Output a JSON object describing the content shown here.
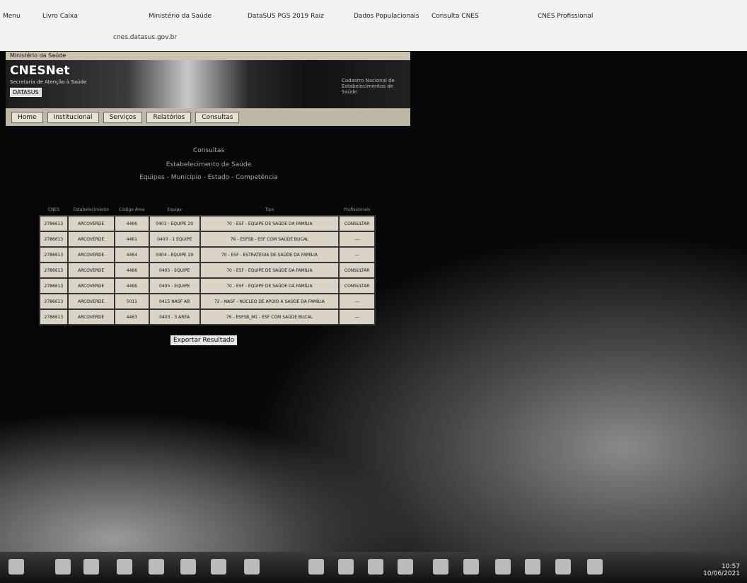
{
  "browser": {
    "tabs": [
      "Menu",
      "Livro Caixa",
      "Ministério da Saúde",
      "DataSUS PGS 2019 Raiz",
      "Dados Populacionais",
      "Consulta CNES",
      "CNES Profissional"
    ],
    "address": "cnes.datasus.gov.br"
  },
  "header": {
    "ministry": "Ministério da Saúde",
    "title": "CNESNet",
    "subtitle": "Secretaria de Atenção à Saúde",
    "logo": "DATASUS",
    "right_text": "Cadastro Nacional de Estabelecimentos de Saúde"
  },
  "nav": [
    "Home",
    "Institucional",
    "Serviços",
    "Relatórios",
    "Consultas"
  ],
  "content": {
    "heading": "Consultas",
    "line1": "Estabelecimento de Saúde",
    "line2": "Equipes - Município - Estado - Competência"
  },
  "table": {
    "headers": [
      "CNES",
      "Estabelecimento",
      "Código Área",
      "Equipe",
      "Tipo",
      "Profissionais"
    ],
    "rows": [
      [
        "2786613",
        "ARCOVERDE",
        "4466",
        "0403 - EQUIPE 20",
        "70 - ESF - EQUIPE DE SAÚDE DA FAMÍLIA",
        "CONSULTAR"
      ],
      [
        "2786613",
        "ARCOVERDE",
        "4461",
        "0403 - 1 EQUIPE",
        "76 - ESFSB - ESF COM SAÚDE BUCAL",
        "---"
      ],
      [
        "2786613",
        "ARCOVERDE",
        "4464",
        "0404 - EQUIPE 19",
        "70 - ESF - ESTRATÉGIA DE SAÚDE DA FAMÍLIA",
        "---"
      ],
      [
        "2786613",
        "ARCOVERDE",
        "4466",
        "0405 - EQUIPE",
        "70 - ESF - EQUIPE DE SAÚDE DA FAMÍLIA",
        "CONSULTAR"
      ],
      [
        "2786613",
        "ARCOVERDE",
        "4466",
        "0405 - EQUIPE",
        "70 - ESF - EQUIPE DE SAÚDE DA FAMÍLIA",
        "CONSULTAR"
      ],
      [
        "2786613",
        "ARCOVERDE",
        "5011",
        "0415 NASF AB",
        "72 - NASF - NÚCLEO DE APOIO À SAÚDE DA FAMÍLIA",
        "---"
      ],
      [
        "2786613",
        "ARCOVERDE",
        "4463",
        "0403 - 3 AREA",
        "76 - ESFSB_M1 - ESF COM SAÚDE BUCAL",
        "---"
      ]
    ]
  },
  "button": "Exportar Resultado",
  "taskbar": {
    "time": "10:57",
    "date": "10/06/2021"
  }
}
